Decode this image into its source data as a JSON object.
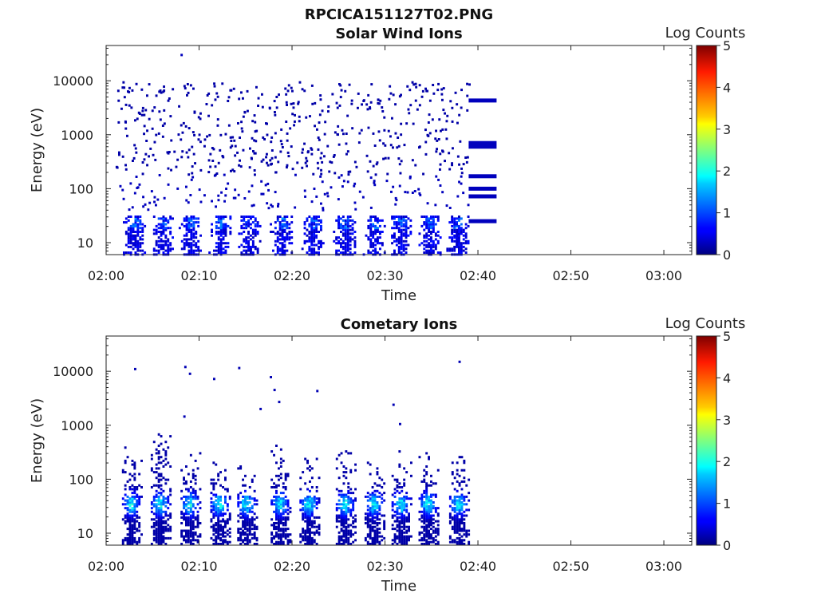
{
  "figure": {
    "title": "RPCICA151127T02.PNG"
  },
  "chart_data": [
    {
      "type": "heatmap",
      "title": "Solar Wind Ions",
      "xlabel": "Time",
      "ylabel": "Energy (eV)",
      "xlim": [
        "02:00",
        "03:03"
      ],
      "ylim": [
        6,
        45000
      ],
      "yscale": "log",
      "xticks": [
        "02:00",
        "02:10",
        "02:20",
        "02:30",
        "02:40",
        "02:50",
        "03:00"
      ],
      "yticks": [
        "10",
        "100",
        "1000",
        "10000"
      ],
      "colorbar": {
        "label": "Log Counts",
        "range": [
          0,
          5
        ],
        "ticks": [
          "0",
          "1",
          "2",
          "3",
          "4",
          "5"
        ]
      },
      "bursts": [
        3.0,
        6.0,
        9.0,
        12.2,
        15.4,
        18.8,
        22.2,
        25.6,
        28.8,
        31.6,
        34.8,
        37.8
      ],
      "scatter_extent": {
        "t": [
          "02:01",
          "02:39"
        ],
        "e_max": 30000
      },
      "energy_lines": {
        "t": [
          "02:39",
          "02:42"
        ],
        "values": [
          4300,
          700,
          600,
          170,
          100,
          72,
          25
        ]
      }
    },
    {
      "type": "heatmap",
      "title": "Cometary Ions",
      "xlabel": "Time",
      "ylabel": "Energy (eV)",
      "xlim": [
        "02:00",
        "03:03"
      ],
      "ylim": [
        6,
        45000
      ],
      "yscale": "log",
      "xticks": [
        "02:00",
        "02:10",
        "02:20",
        "02:30",
        "02:40",
        "02:50",
        "03:00"
      ],
      "yticks": [
        "10",
        "100",
        "1000",
        "10000"
      ],
      "colorbar": {
        "label": "Log Counts",
        "range": [
          0,
          5
        ],
        "ticks": [
          "0",
          "1",
          "2",
          "3",
          "4",
          "5"
        ]
      },
      "bursts": [
        2.2,
        5.3,
        8.5,
        11.7,
        14.6,
        18.2,
        21.3,
        25.2,
        28.3,
        31.2,
        34.1,
        37.4
      ],
      "band_energy": 35,
      "band_peak_log_counts": 2.4,
      "sparse_points": [
        [
          3.0,
          11000
        ],
        [
          8.4,
          12000
        ],
        [
          8.9,
          9000
        ],
        [
          11.5,
          7200
        ],
        [
          14.2,
          11500
        ],
        [
          17.6,
          7800
        ],
        [
          18.0,
          4500
        ],
        [
          18.5,
          2700
        ],
        [
          16.5,
          2000
        ],
        [
          22.6,
          4300
        ],
        [
          30.8,
          2400
        ],
        [
          37.9,
          15000
        ],
        [
          8.3,
          1450
        ],
        [
          31.5,
          1050
        ]
      ]
    }
  ]
}
